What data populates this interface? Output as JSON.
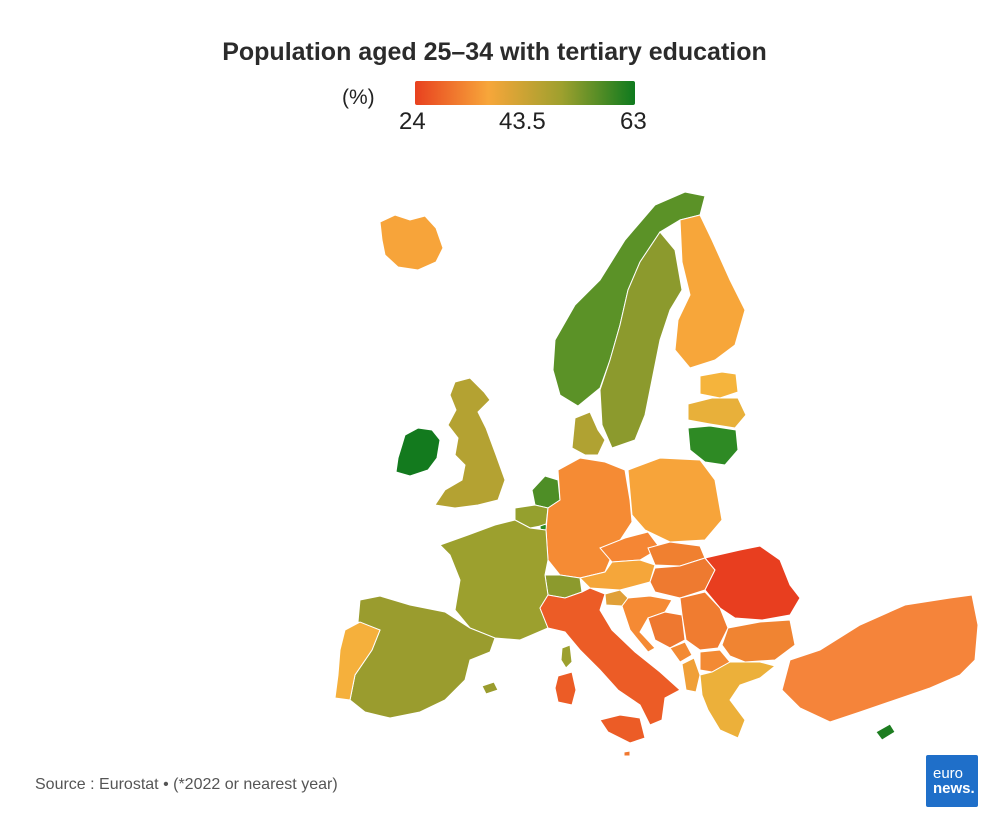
{
  "title": "Population aged 25–34 with tertiary education",
  "legend": {
    "unit": "(%)",
    "min": "24",
    "mid": "43.5",
    "max": "63",
    "colors": [
      "#e8411f",
      "#f7a63a",
      "#9ea02e",
      "#0e7a1e"
    ]
  },
  "countries": [
    {
      "key": "iceland",
      "color": "#f7a43a"
    },
    {
      "key": "ireland",
      "color": "#137a1e"
    },
    {
      "key": "uk",
      "color": "#b4a232"
    },
    {
      "key": "norway",
      "color": "#5b9227"
    },
    {
      "key": "sweden",
      "color": "#8c9a2d"
    },
    {
      "key": "finland",
      "color": "#f7a63a"
    },
    {
      "key": "estonia",
      "color": "#f5b43c"
    },
    {
      "key": "latvia",
      "color": "#e8b03a"
    },
    {
      "key": "lithuania",
      "color": "#2e8a24"
    },
    {
      "key": "denmark",
      "color": "#b0a232"
    },
    {
      "key": "netherlands",
      "color": "#4e8e26"
    },
    {
      "key": "belgium",
      "color": "#95a02e"
    },
    {
      "key": "germany",
      "color": "#f58b34"
    },
    {
      "key": "poland",
      "color": "#f7a43a"
    },
    {
      "key": "france",
      "color": "#9ca02e"
    },
    {
      "key": "spain",
      "color": "#9a9c2e"
    },
    {
      "key": "portugal",
      "color": "#f5b03c"
    },
    {
      "key": "switzerland",
      "color": "#8c9a2d"
    },
    {
      "key": "austria",
      "color": "#f5a63a"
    },
    {
      "key": "czechia",
      "color": "#f58634"
    },
    {
      "key": "slovakia",
      "color": "#f08030"
    },
    {
      "key": "hungary",
      "color": "#ee7a30"
    },
    {
      "key": "slovenia",
      "color": "#e0a038"
    },
    {
      "key": "croatia",
      "color": "#f58a34"
    },
    {
      "key": "bosnia",
      "color": "#ee7830"
    },
    {
      "key": "serbia",
      "color": "#f07c30"
    },
    {
      "key": "montenegro",
      "color": "#f38a34"
    },
    {
      "key": "albania",
      "color": "#f0a038"
    },
    {
      "key": "north_macedonia",
      "color": "#f38a34"
    },
    {
      "key": "romania",
      "color": "#e83e1f"
    },
    {
      "key": "bulgaria",
      "color": "#f08432"
    },
    {
      "key": "greece",
      "color": "#ecb03a"
    },
    {
      "key": "turkey",
      "color": "#f5843a"
    },
    {
      "key": "cyprus",
      "color": "#1d7d20"
    },
    {
      "key": "italy",
      "color": "#ec5c26"
    },
    {
      "key": "sardinia",
      "color": "#ec5c26"
    },
    {
      "key": "sicily",
      "color": "#ec5c26"
    },
    {
      "key": "corsica",
      "color": "#9ca02e"
    },
    {
      "key": "luxembourg",
      "color": "#2a8a22"
    },
    {
      "key": "malta",
      "color": "#f07830"
    },
    {
      "key": "balearic",
      "color": "#9a9c2e"
    }
  ],
  "source": "Source : Eurostat • (*2022 or nearest year)",
  "logo": {
    "line1": "euro",
    "line2": "news."
  }
}
